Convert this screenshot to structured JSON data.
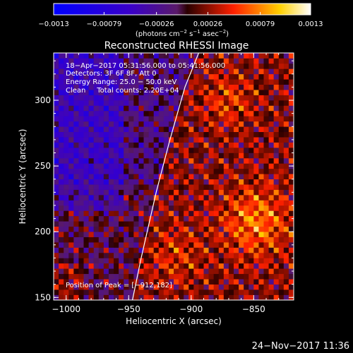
{
  "chart_data": {
    "type": "heatmap",
    "title": "Reconstructed RHESSI Image",
    "xlabel": "Heliocentric X (arcsec)",
    "ylabel": "Heliocentric Y (arcsec)",
    "xlim": [
      -1010,
      -818
    ],
    "ylim": [
      148,
      336
    ],
    "xticks": [
      -1000,
      -950,
      -900,
      -850
    ],
    "xtick_labels": [
      "−1000",
      "−950",
      "−900",
      "−850"
    ],
    "yticks": [
      150,
      200,
      250,
      300
    ],
    "ytick_labels": [
      "150",
      "200",
      "250",
      "300"
    ],
    "colorbar": {
      "range": [
        -0.0013,
        0.0013
      ],
      "ticks": [
        -0.0013,
        -0.00079,
        -0.00026,
        0.00026,
        0.00079,
        0.0013
      ],
      "tick_labels": [
        "−0.0013",
        "−0.00079",
        "−0.00026",
        "0.00026",
        "0.00079",
        "0.0013"
      ],
      "unit_parts": [
        "(photons cm",
        "−2",
        " s",
        "−1",
        " asec",
        "−2",
        ")"
      ]
    },
    "annotations": [
      "18−Apr−2017 05:31:56.000 to 05:41:56.000",
      "Detectors: 3F 6F 8F, Att 0",
      "Energy Range: 25.0 − 50.0 keV",
      "Clean     Total counts: 2.20E+04"
    ],
    "peak_label": "Position of Peak = [−912,182]",
    "peak": [
      -912,
      182
    ],
    "limb_x_values": [
      -947,
      -940,
      -928,
      -917,
      -905,
      -894
    ],
    "limb_y_values": [
      148,
      180,
      230,
      270,
      310,
      336
    ],
    "timestamp": "24−Nov−2017 11:36"
  }
}
